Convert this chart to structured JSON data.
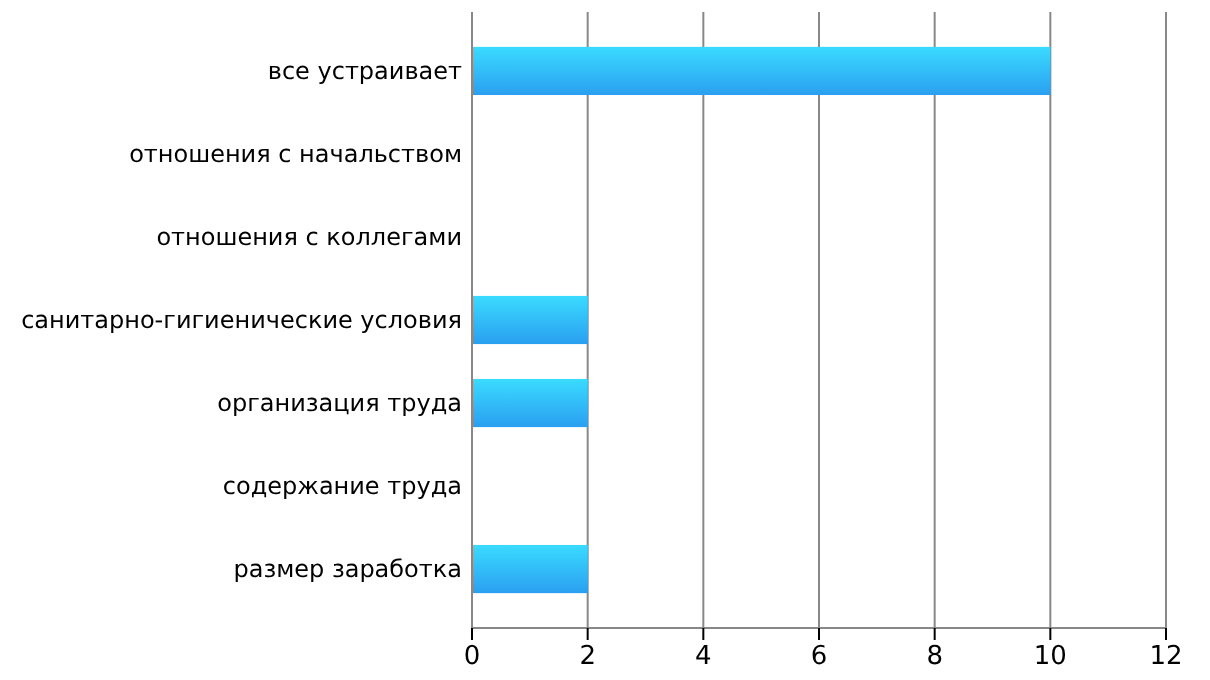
{
  "chart_data": {
    "type": "bar",
    "orientation": "horizontal",
    "categories": [
      "все устраивает",
      "отношения с начальством",
      "отношения с коллегами",
      "санитарно-гигиенические условия",
      "организация труда",
      "содержание труда",
      "размер заработка"
    ],
    "values": [
      10,
      0,
      0,
      2,
      2,
      0,
      2
    ],
    "color": "#2a9ff0",
    "xlim": [
      0,
      12
    ],
    "xticks": [
      0,
      2,
      4,
      6,
      8,
      10,
      12
    ],
    "grid": "x"
  }
}
